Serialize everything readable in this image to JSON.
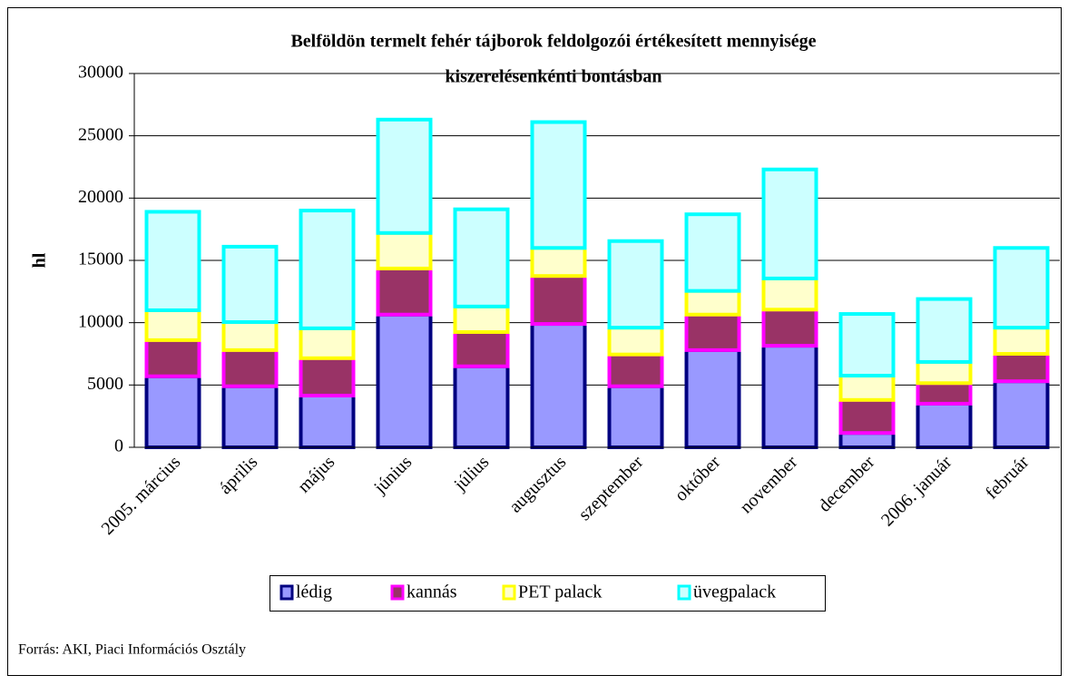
{
  "chart_data": {
    "type": "bar",
    "stacked": true,
    "title": [
      "Belföldön termelt fehér tájborok feldolgozói értékesített mennyisége",
      "kiszerelésenkénti bontásban"
    ],
    "ylabel": "hl",
    "source": "Forrás: AKI, Piaci Információs Osztály",
    "categories": [
      "2005. március",
      "április",
      "május",
      "június",
      "július",
      "augusztus",
      "szeptember",
      "október",
      "november",
      "december",
      "2006. január",
      "február"
    ],
    "series": [
      {
        "name": "lédig",
        "color": "#9999ff",
        "edgecolor": "#000080",
        "values": [
          5700,
          4900,
          4150,
          10650,
          6500,
          9900,
          4900,
          7800,
          8150,
          1150,
          3500,
          5300
        ]
      },
      {
        "name": "kannás",
        "color": "#993366",
        "edgecolor": "#ff00ff",
        "values": [
          2900,
          2900,
          3000,
          3700,
          2750,
          3850,
          2550,
          2850,
          2900,
          2650,
          1650,
          2200
        ]
      },
      {
        "name": "PET palack",
        "color": "#ffffcc",
        "edgecolor": "#ffff00",
        "values": [
          2400,
          2250,
          2400,
          2850,
          2050,
          2250,
          2150,
          1900,
          2500,
          1950,
          1700,
          2100
        ]
      },
      {
        "name": "üvegpalack",
        "color": "#ccffff",
        "edgecolor": "#00ffff",
        "values": [
          7900,
          6050,
          9450,
          9100,
          7800,
          10100,
          6950,
          6150,
          8750,
          4950,
          5050,
          6400
        ]
      }
    ],
    "ylim": [
      0,
      30000
    ],
    "yticks": [
      0,
      5000,
      10000,
      15000,
      20000,
      25000,
      30000
    ],
    "grid": true,
    "legend": "bottom"
  }
}
